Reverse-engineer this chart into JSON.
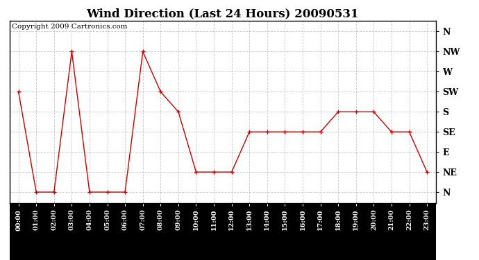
{
  "title": "Wind Direction (Last 24 Hours) 20090531",
  "copyright": "Copyright 2009 Cartronics.com",
  "hours": [
    "00:00",
    "01:00",
    "02:00",
    "03:00",
    "04:00",
    "05:00",
    "06:00",
    "07:00",
    "08:00",
    "09:00",
    "10:00",
    "11:00",
    "12:00",
    "13:00",
    "14:00",
    "15:00",
    "16:00",
    "17:00",
    "18:00",
    "19:00",
    "20:00",
    "21:00",
    "22:00",
    "23:00"
  ],
  "wind_dir_labels": [
    "N",
    "NE",
    "E",
    "SE",
    "S",
    "SW",
    "W",
    "NW",
    "N"
  ],
  "wind_dir_values": [
    0,
    22.5,
    45,
    67.5,
    90,
    112.5,
    135,
    157.5,
    180
  ],
  "data": [
    112.5,
    0,
    0,
    157.5,
    0,
    0,
    0,
    157.5,
    112.5,
    90,
    22.5,
    22.5,
    22.5,
    67.5,
    67.5,
    67.5,
    67.5,
    67.5,
    90,
    90,
    90,
    67.5,
    67.5,
    22.5
  ],
  "line_color": "#cc0000",
  "marker_color": "#cc0000",
  "bg_color": "#ffffff",
  "plot_bg_color": "#ffffff",
  "grid_color": "#bbbbbb",
  "title_fontsize": 12,
  "copyright_fontsize": 7.5,
  "xlabel_fontsize": 7,
  "ylabel_fontsize": 9
}
